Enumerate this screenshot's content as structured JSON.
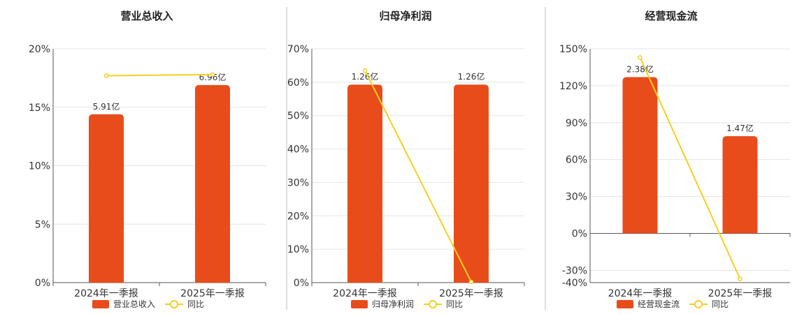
{
  "colors": {
    "bar": "#e84c1b",
    "line": "#f5cf1f",
    "grid": "#e4e4e4",
    "axis": "#555555",
    "divider": "#bbbbbb"
  },
  "legend": {
    "line_label": "同比"
  },
  "chart_data": [
    {
      "type": "bar",
      "title": "营业总收入",
      "categories": [
        "2024年一季报",
        "2025年一季报"
      ],
      "series": [
        {
          "name": "营业总收入",
          "type": "bar",
          "values": [
            14.4,
            16.9
          ],
          "labels": [
            "5.91亿",
            "6.96亿"
          ]
        },
        {
          "name": "同比",
          "type": "line",
          "values": [
            17.7,
            17.8
          ]
        }
      ],
      "ylim": [
        0,
        20
      ],
      "yticks": [
        0,
        5,
        10,
        15,
        20
      ],
      "ytick_labels": [
        "0%",
        "5%",
        "10%",
        "15%",
        "20%"
      ],
      "grid": true,
      "legend_position": "bottom"
    },
    {
      "type": "bar",
      "title": "归母净利润",
      "categories": [
        "2024年一季报",
        "2025年一季报"
      ],
      "series": [
        {
          "name": "归母净利润",
          "type": "bar",
          "values": [
            59.3,
            59.3
          ],
          "labels": [
            "1.26亿",
            "1.26亿"
          ]
        },
        {
          "name": "同比",
          "type": "line",
          "values": [
            63.5,
            0.2
          ]
        }
      ],
      "ylim": [
        0,
        70
      ],
      "yticks": [
        0,
        10,
        20,
        30,
        40,
        50,
        60,
        70
      ],
      "ytick_labels": [
        "0%",
        "10%",
        "20%",
        "30%",
        "40%",
        "50%",
        "60%",
        "70%"
      ],
      "grid": true,
      "legend_position": "bottom"
    },
    {
      "type": "bar",
      "title": "经营现金流",
      "categories": [
        "2024年一季报",
        "2025年一季报"
      ],
      "series": [
        {
          "name": "经营现金流",
          "type": "bar",
          "values": [
            127,
            79
          ],
          "labels": [
            "2.38亿",
            "1.47亿"
          ]
        },
        {
          "name": "同比",
          "type": "line",
          "values": [
            143,
            -37
          ]
        }
      ],
      "ylim": [
        -40,
        150
      ],
      "yticks": [
        -40,
        -30,
        0,
        30,
        60,
        90,
        120,
        150
      ],
      "ytick_labels": [
        "-40%",
        "-30%",
        "0%",
        "30%",
        "60%",
        "90%",
        "120%",
        "150%"
      ],
      "grid": true,
      "legend_position": "bottom"
    }
  ]
}
